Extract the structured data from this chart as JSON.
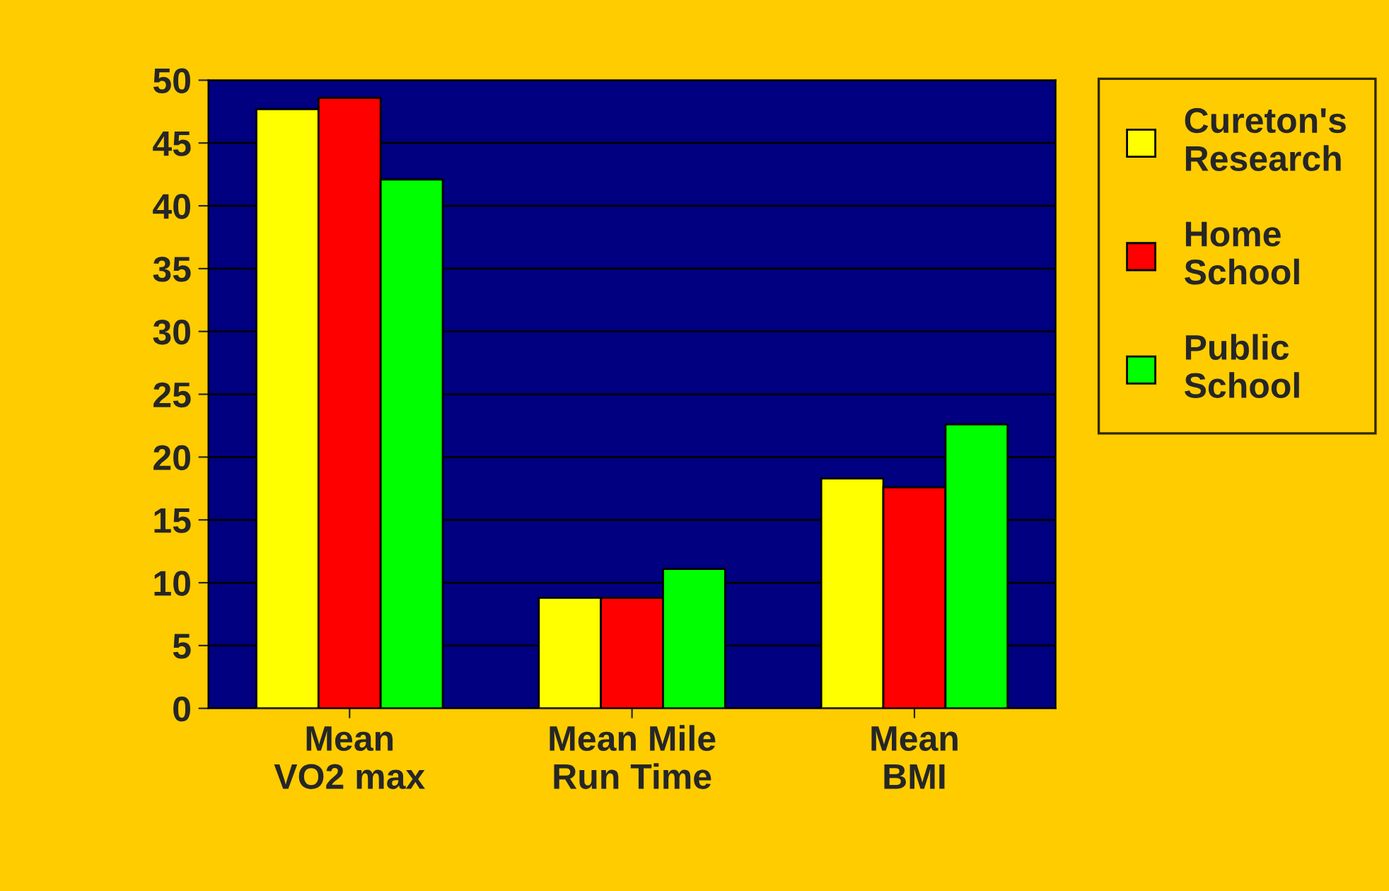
{
  "chart_data": {
    "type": "bar",
    "categories": [
      "Mean VO2 max",
      "Mean Mile Run Time",
      "Mean BMI"
    ],
    "series": [
      {
        "name": "Cureton's Research",
        "color": "#ffff00",
        "values": [
          47.7,
          8.8,
          18.3
        ]
      },
      {
        "name": "Home School",
        "color": "#ff0000",
        "values": [
          48.6,
          8.8,
          17.6
        ]
      },
      {
        "name": "Public School",
        "color": "#00ff00",
        "values": [
          42.1,
          11.1,
          22.6
        ]
      }
    ],
    "ylim": [
      0,
      50
    ],
    "yticks": [
      0,
      5,
      10,
      15,
      20,
      25,
      30,
      35,
      40,
      45,
      50
    ],
    "grid": "y",
    "legend": "right"
  }
}
